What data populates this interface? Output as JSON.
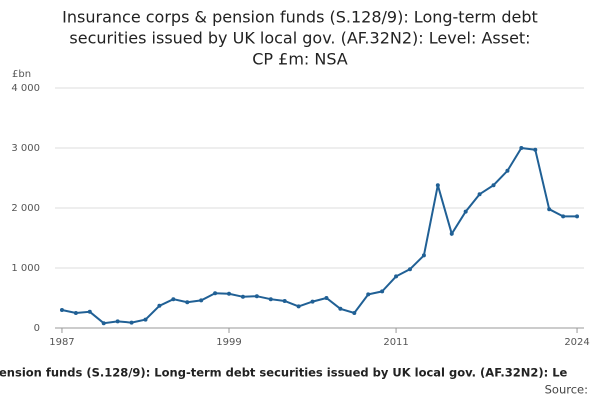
{
  "chart_data": {
    "type": "line",
    "title": [
      "Insurance corps & pension funds (S.128/9): Long-term debt",
      "securities issued by UK local gov. (AF.32N2): Level: Asset:",
      "CP £m: NSA"
    ],
    "y_unit": "£bn",
    "x": [
      1987,
      1988,
      1989,
      1990,
      1991,
      1992,
      1993,
      1994,
      1995,
      1996,
      1997,
      1998,
      1999,
      2000,
      2001,
      2002,
      2003,
      2004,
      2005,
      2006,
      2007,
      2008,
      2009,
      2010,
      2011,
      2012,
      2013,
      2014,
      2015,
      2016,
      2017,
      2018,
      2019,
      2020,
      2021,
      2022,
      2023,
      2024
    ],
    "series": [
      {
        "color": "#206095",
        "values": [
          300,
          250,
          270,
          80,
          110,
          90,
          140,
          370,
          480,
          430,
          460,
          580,
          570,
          520,
          530,
          480,
          450,
          360,
          440,
          500,
          320,
          250,
          560,
          610,
          860,
          980,
          1210,
          2380,
          1570,
          1940,
          2230,
          2380,
          2620,
          3000,
          2970,
          1980,
          1860,
          1860
        ]
      }
    ],
    "xlim": [
      1986.5,
      2024.5
    ],
    "xticks": [
      1987,
      1999,
      2011,
      2024
    ],
    "ylim": [
      0,
      4000
    ],
    "yticks": [
      0,
      {
        "value": 1000,
        "label": "1 000"
      },
      {
        "value": 2000,
        "label": "2 000"
      },
      {
        "value": 3000,
        "label": "3 000"
      },
      {
        "value": 4000,
        "label": "4 000"
      }
    ],
    "grid": true,
    "footer": "ension funds (S.128/9): Long-term debt securities issued by UK local gov. (AF.32N2): Le",
    "source": "Source:"
  }
}
